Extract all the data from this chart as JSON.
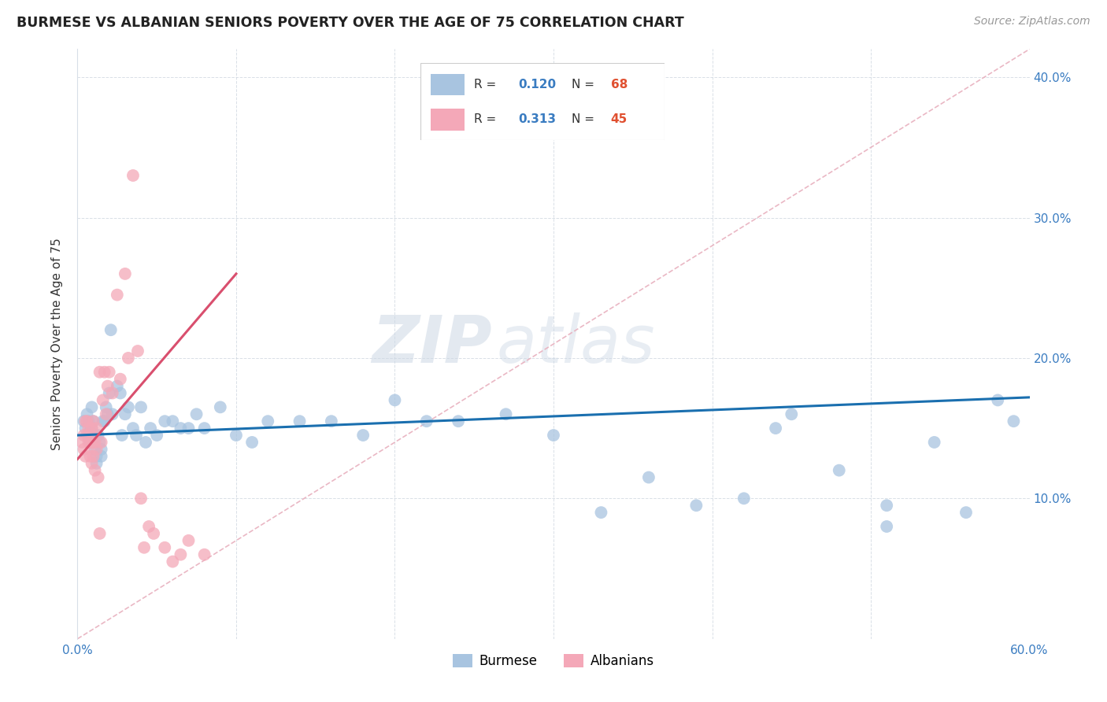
{
  "title": "BURMESE VS ALBANIAN SENIORS POVERTY OVER THE AGE OF 75 CORRELATION CHART",
  "source": "Source: ZipAtlas.com",
  "ylabel": "Seniors Poverty Over the Age of 75",
  "xlim": [
    0.0,
    0.6
  ],
  "ylim": [
    0.0,
    0.42
  ],
  "xticks": [
    0.0,
    0.1,
    0.2,
    0.3,
    0.4,
    0.5,
    0.6
  ],
  "xticklabels": [
    "0.0%",
    "",
    "",
    "",
    "",
    "",
    "60.0%"
  ],
  "yticks": [
    0.0,
    0.1,
    0.2,
    0.3,
    0.4
  ],
  "yticklabels_right": [
    "",
    "10.0%",
    "20.0%",
    "30.0%",
    "40.0%"
  ],
  "burmese_R": 0.12,
  "burmese_N": 68,
  "albanian_R": 0.313,
  "albanian_N": 45,
  "burmese_color": "#a8c4e0",
  "albanian_color": "#f4a8b8",
  "burmese_line_color": "#1a6faf",
  "albanian_line_color": "#d94f6e",
  "diagonal_color": "#e8b0be",
  "watermark_zip": "ZIP",
  "watermark_atlas": "atlas",
  "burmese_x": [
    0.004,
    0.005,
    0.006,
    0.007,
    0.007,
    0.008,
    0.008,
    0.009,
    0.009,
    0.01,
    0.01,
    0.011,
    0.011,
    0.012,
    0.012,
    0.013,
    0.014,
    0.015,
    0.015,
    0.016,
    0.017,
    0.018,
    0.019,
    0.02,
    0.021,
    0.022,
    0.025,
    0.027,
    0.028,
    0.03,
    0.032,
    0.035,
    0.037,
    0.04,
    0.043,
    0.046,
    0.05,
    0.055,
    0.06,
    0.065,
    0.07,
    0.075,
    0.08,
    0.09,
    0.1,
    0.11,
    0.12,
    0.14,
    0.16,
    0.18,
    0.2,
    0.22,
    0.24,
    0.27,
    0.3,
    0.33,
    0.36,
    0.39,
    0.42,
    0.45,
    0.48,
    0.51,
    0.54,
    0.56,
    0.58,
    0.59,
    0.51,
    0.44
  ],
  "burmese_y": [
    0.155,
    0.15,
    0.16,
    0.155,
    0.145,
    0.148,
    0.14,
    0.165,
    0.15,
    0.14,
    0.155,
    0.135,
    0.145,
    0.13,
    0.125,
    0.145,
    0.14,
    0.135,
    0.13,
    0.155,
    0.155,
    0.165,
    0.16,
    0.175,
    0.22,
    0.16,
    0.18,
    0.175,
    0.145,
    0.16,
    0.165,
    0.15,
    0.145,
    0.165,
    0.14,
    0.15,
    0.145,
    0.155,
    0.155,
    0.15,
    0.15,
    0.16,
    0.15,
    0.165,
    0.145,
    0.14,
    0.155,
    0.155,
    0.155,
    0.145,
    0.17,
    0.155,
    0.155,
    0.16,
    0.145,
    0.09,
    0.115,
    0.095,
    0.1,
    0.16,
    0.12,
    0.095,
    0.14,
    0.09,
    0.17,
    0.155,
    0.08,
    0.15
  ],
  "albanian_x": [
    0.003,
    0.004,
    0.004,
    0.005,
    0.005,
    0.006,
    0.006,
    0.007,
    0.007,
    0.008,
    0.008,
    0.009,
    0.009,
    0.009,
    0.01,
    0.01,
    0.011,
    0.011,
    0.012,
    0.012,
    0.013,
    0.014,
    0.014,
    0.015,
    0.016,
    0.017,
    0.018,
    0.019,
    0.02,
    0.022,
    0.025,
    0.027,
    0.03,
    0.032,
    0.035,
    0.038,
    0.04,
    0.042,
    0.045,
    0.048,
    0.055,
    0.06,
    0.065,
    0.07,
    0.08
  ],
  "albanian_y": [
    0.14,
    0.145,
    0.135,
    0.155,
    0.13,
    0.155,
    0.145,
    0.15,
    0.14,
    0.14,
    0.13,
    0.15,
    0.14,
    0.125,
    0.13,
    0.155,
    0.14,
    0.12,
    0.15,
    0.135,
    0.115,
    0.19,
    0.075,
    0.14,
    0.17,
    0.19,
    0.16,
    0.18,
    0.19,
    0.175,
    0.245,
    0.185,
    0.26,
    0.2,
    0.33,
    0.205,
    0.1,
    0.065,
    0.08,
    0.075,
    0.065,
    0.055,
    0.06,
    0.07,
    0.06
  ]
}
